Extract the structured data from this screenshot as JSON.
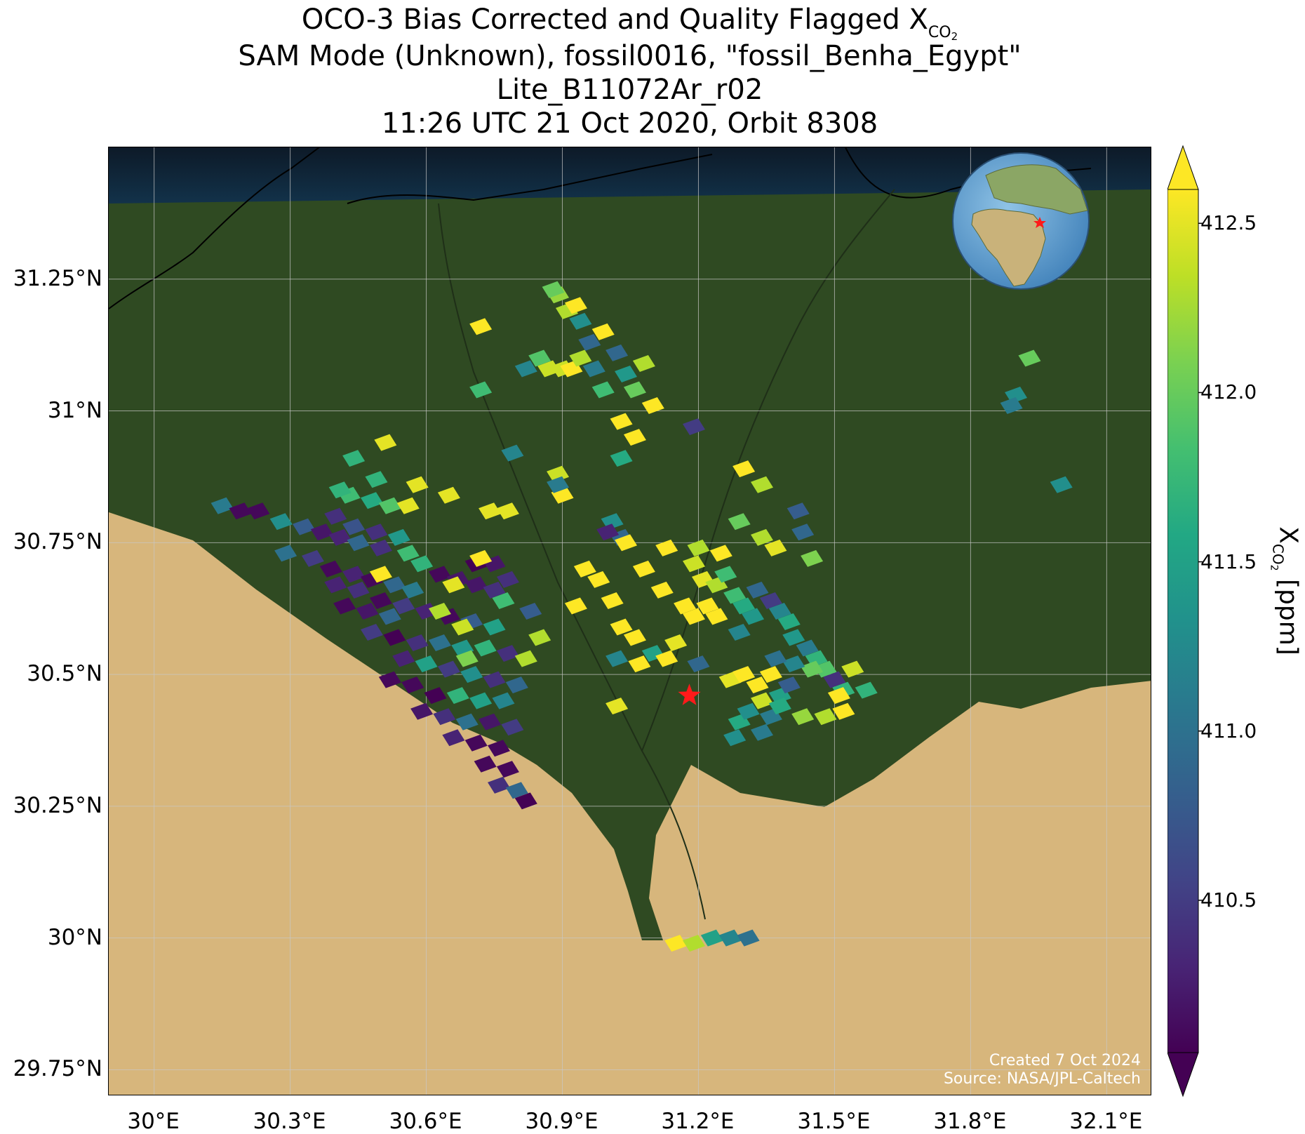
{
  "title": {
    "line1_main": "OCO-3 Bias Corrected and Quality Flagged X",
    "line1_sub": "CO",
    "line1_sub2": "2",
    "line2": "SAM Mode (Unknown), fossil0016, \"fossil_Benha_Egypt\"",
    "line3": "Lite_B11072Ar_r02",
    "line4": "11:26 UTC 21 Oct 2020, Orbit 8308"
  },
  "map": {
    "lon_range": [
      29.9,
      32.2
    ],
    "lat_range": [
      29.7,
      31.5
    ],
    "lon_ticks": [
      {
        "value": 30.0,
        "label": "30°E"
      },
      {
        "value": 30.3,
        "label": "30.3°E"
      },
      {
        "value": 30.6,
        "label": "30.6°E"
      },
      {
        "value": 30.9,
        "label": "30.9°E"
      },
      {
        "value": 31.2,
        "label": "31.2°E"
      },
      {
        "value": 31.5,
        "label": "31.5°E"
      },
      {
        "value": 31.8,
        "label": "31.8°E"
      },
      {
        "value": 32.1,
        "label": "32.1°E"
      }
    ],
    "lat_ticks": [
      {
        "value": 29.75,
        "label": "29.75°N"
      },
      {
        "value": 30.0,
        "label": "30°N"
      },
      {
        "value": 30.25,
        "label": "30.25°N"
      },
      {
        "value": 30.5,
        "label": "30.5°N"
      },
      {
        "value": 30.75,
        "label": "30.75°N"
      },
      {
        "value": 31.0,
        "label": "31°N"
      },
      {
        "value": 31.25,
        "label": "31.25°N"
      }
    ],
    "target": {
      "name": "fossil_Benha_Egypt",
      "lon": 31.18,
      "lat": 30.46,
      "marker": "red-star"
    },
    "colors": {
      "sea": "#0f1f2e",
      "delta": "#2e4a22",
      "desert": "#d9b77c",
      "star": "#ff1a1a",
      "grid": "#c8c8c8"
    },
    "credit_line1": "Created 7 Oct 2024",
    "credit_line2": "Source: NASA/JPL-Caltech",
    "inset_globe": {
      "marker": "red-star",
      "region": "Africa / Middle East"
    }
  },
  "colorbar": {
    "label_main": "X",
    "label_sub": "CO",
    "label_sub2": "2",
    "label_unit": " [ppm]",
    "range": [
      410.05,
      412.6
    ],
    "ticks": [
      {
        "value": 410.5,
        "label": "410.5"
      },
      {
        "value": 411.0,
        "label": "411.0"
      },
      {
        "value": 411.5,
        "label": "411.5"
      },
      {
        "value": 412.0,
        "label": "412.0"
      },
      {
        "value": 412.5,
        "label": "412.5"
      }
    ],
    "colormap": "viridis",
    "extend": "both"
  },
  "chart_data": {
    "type": "scatter",
    "title": "OCO-3 Bias Corrected and Quality Flagged XCO2",
    "xlabel": "",
    "ylabel": "",
    "colorbar_label": "XCO2 [ppm]",
    "x_name": "longitude (°E)",
    "y_name": "latitude (°N)",
    "value_name": "XCO2 (ppm)",
    "soundings": [
      [
        30.15,
        30.82,
        411.1
      ],
      [
        30.19,
        30.81,
        410.1
      ],
      [
        30.23,
        30.81,
        410.1
      ],
      [
        30.28,
        30.79,
        411.3
      ],
      [
        30.33,
        30.78,
        410.8
      ],
      [
        30.37,
        30.77,
        410.2
      ],
      [
        30.41,
        30.76,
        410.3
      ],
      [
        30.45,
        30.75,
        410.9
      ],
      [
        30.5,
        30.74,
        410.4
      ],
      [
        30.29,
        30.73,
        411.0
      ],
      [
        30.35,
        30.72,
        410.5
      ],
      [
        30.39,
        30.7,
        410.1
      ],
      [
        30.44,
        30.69,
        410.3
      ],
      [
        30.48,
        30.68,
        410.1
      ],
      [
        30.53,
        30.67,
        410.9
      ],
      [
        30.57,
        30.66,
        411.1
      ],
      [
        30.43,
        30.84,
        411.8
      ],
      [
        30.48,
        30.83,
        411.6
      ],
      [
        30.52,
        30.82,
        411.9
      ],
      [
        30.4,
        30.8,
        410.4
      ],
      [
        30.44,
        30.78,
        410.7
      ],
      [
        30.49,
        30.77,
        410.4
      ],
      [
        30.54,
        30.76,
        411.4
      ],
      [
        30.56,
        30.73,
        411.8
      ],
      [
        30.59,
        30.71,
        411.7
      ],
      [
        30.4,
        30.67,
        410.3
      ],
      [
        30.45,
        30.66,
        410.4
      ],
      [
        30.5,
        30.64,
        410.1
      ],
      [
        30.55,
        30.63,
        410.5
      ],
      [
        30.6,
        30.62,
        410.3
      ],
      [
        30.65,
        30.61,
        410.1
      ],
      [
        30.7,
        30.6,
        410.8
      ],
      [
        30.75,
        30.59,
        411.5
      ],
      [
        30.63,
        30.69,
        410.1
      ],
      [
        30.67,
        30.68,
        410.2
      ],
      [
        30.71,
        30.67,
        410.2
      ],
      [
        30.75,
        30.66,
        410.4
      ],
      [
        30.71,
        30.71,
        410.0
      ],
      [
        30.75,
        30.71,
        410.2
      ],
      [
        30.78,
        30.68,
        410.4
      ],
      [
        30.42,
        30.63,
        410.1
      ],
      [
        30.47,
        30.62,
        410.2
      ],
      [
        30.52,
        30.61,
        410.9
      ],
      [
        30.48,
        30.58,
        410.5
      ],
      [
        30.53,
        30.57,
        410.0
      ],
      [
        30.58,
        30.56,
        410.4
      ],
      [
        30.63,
        30.56,
        411.0
      ],
      [
        30.68,
        30.55,
        411.4
      ],
      [
        30.73,
        30.55,
        411.7
      ],
      [
        30.78,
        30.54,
        410.4
      ],
      [
        30.82,
        30.53,
        412.3
      ],
      [
        30.55,
        30.53,
        410.3
      ],
      [
        30.6,
        30.52,
        411.5
      ],
      [
        30.65,
        30.51,
        410.5
      ],
      [
        30.7,
        30.5,
        411.3
      ],
      [
        30.75,
        30.49,
        410.4
      ],
      [
        30.8,
        30.48,
        410.9
      ],
      [
        30.52,
        30.49,
        410.1
      ],
      [
        30.57,
        30.48,
        410.1
      ],
      [
        30.62,
        30.46,
        410.0
      ],
      [
        30.67,
        30.46,
        411.7
      ],
      [
        30.72,
        30.45,
        411.5
      ],
      [
        30.77,
        30.45,
        411.2
      ],
      [
        30.59,
        30.43,
        410.2
      ],
      [
        30.64,
        30.42,
        410.4
      ],
      [
        30.69,
        30.41,
        411.0
      ],
      [
        30.74,
        30.41,
        410.2
      ],
      [
        30.79,
        30.4,
        410.5
      ],
      [
        30.66,
        30.38,
        410.3
      ],
      [
        30.71,
        30.37,
        410.1
      ],
      [
        30.76,
        30.36,
        410.1
      ],
      [
        30.73,
        30.33,
        410.1
      ],
      [
        30.78,
        30.32,
        410.1
      ],
      [
        30.76,
        30.29,
        410.4
      ],
      [
        30.8,
        30.28,
        410.9
      ],
      [
        30.82,
        30.26,
        410.0
      ],
      [
        30.66,
        30.67,
        412.5
      ],
      [
        30.68,
        30.59,
        412.4
      ],
      [
        30.72,
        30.72,
        412.6
      ],
      [
        30.77,
        30.64,
        411.8
      ],
      [
        30.5,
        30.69,
        412.6
      ],
      [
        30.63,
        30.62,
        412.3
      ],
      [
        30.69,
        30.53,
        412.1
      ],
      [
        30.83,
        30.62,
        410.8
      ],
      [
        30.85,
        30.57,
        412.3
      ],
      [
        30.51,
        30.94,
        412.5
      ],
      [
        30.44,
        30.91,
        411.7
      ],
      [
        30.49,
        30.87,
        411.7
      ],
      [
        30.41,
        30.85,
        411.7
      ],
      [
        30.58,
        30.86,
        412.5
      ],
      [
        30.65,
        30.84,
        412.5
      ],
      [
        30.56,
        30.82,
        412.5
      ],
      [
        30.74,
        30.81,
        412.5
      ],
      [
        30.79,
        30.92,
        411.2
      ],
      [
        30.89,
        30.88,
        412.4
      ],
      [
        30.9,
        30.84,
        412.6
      ],
      [
        30.89,
        30.86,
        411.1
      ],
      [
        30.78,
        30.81,
        412.5
      ],
      [
        30.72,
        31.16,
        412.6
      ],
      [
        30.72,
        31.04,
        411.8
      ],
      [
        30.82,
        31.08,
        411.2
      ],
      [
        30.85,
        31.1,
        411.9
      ],
      [
        30.87,
        31.08,
        412.4
      ],
      [
        30.9,
        31.08,
        412.4
      ],
      [
        30.92,
        31.08,
        412.6
      ],
      [
        30.89,
        31.22,
        412.2
      ],
      [
        30.91,
        31.19,
        412.3
      ],
      [
        30.94,
        31.17,
        411.3
      ],
      [
        30.96,
        31.13,
        410.9
      ],
      [
        30.97,
        31.08,
        411.1
      ],
      [
        30.94,
        31.1,
        412.3
      ],
      [
        30.99,
        31.15,
        412.6
      ],
      [
        31.02,
        31.11,
        410.9
      ],
      [
        31.04,
        31.07,
        411.4
      ],
      [
        30.99,
        31.04,
        411.8
      ],
      [
        31.06,
        31.04,
        412.0
      ],
      [
        31.08,
        31.09,
        412.3
      ],
      [
        31.1,
        31.01,
        412.6
      ],
      [
        31.03,
        30.98,
        412.6
      ],
      [
        31.06,
        30.95,
        412.6
      ],
      [
        31.03,
        30.91,
        411.6
      ],
      [
        30.88,
        31.23,
        412.0
      ],
      [
        30.93,
        31.2,
        412.6
      ],
      [
        31.19,
        30.97,
        410.5
      ],
      [
        31.93,
        31.1,
        412.0
      ],
      [
        31.9,
        31.03,
        411.3
      ],
      [
        31.89,
        31.01,
        411.1
      ],
      [
        32.0,
        30.86,
        411.3
      ],
      [
        31.3,
        30.89,
        412.6
      ],
      [
        31.34,
        30.86,
        412.3
      ],
      [
        31.42,
        30.81,
        410.8
      ],
      [
        31.43,
        30.77,
        410.9
      ],
      [
        31.29,
        30.79,
        412.0
      ],
      [
        31.34,
        30.76,
        412.3
      ],
      [
        31.37,
        30.74,
        412.5
      ],
      [
        31.45,
        30.72,
        412.1
      ],
      [
        31.01,
        30.79,
        411.3
      ],
      [
        31.03,
        30.76,
        410.9
      ],
      [
        31.0,
        30.77,
        410.3
      ],
      [
        31.04,
        30.75,
        412.6
      ],
      [
        31.13,
        30.74,
        412.6
      ],
      [
        31.2,
        30.74,
        412.3
      ],
      [
        31.25,
        30.73,
        412.6
      ],
      [
        31.19,
        30.71,
        412.4
      ],
      [
        31.21,
        30.68,
        412.5
      ],
      [
        31.24,
        30.67,
        412.3
      ],
      [
        31.26,
        30.69,
        411.8
      ],
      [
        30.95,
        30.7,
        412.6
      ],
      [
        30.98,
        30.68,
        412.6
      ],
      [
        31.08,
        30.7,
        412.6
      ],
      [
        31.12,
        30.66,
        412.6
      ],
      [
        31.01,
        30.64,
        412.6
      ],
      [
        30.93,
        30.63,
        412.6
      ],
      [
        31.22,
        30.63,
        412.6
      ],
      [
        31.24,
        30.61,
        412.6
      ],
      [
        31.19,
        30.61,
        412.6
      ],
      [
        31.17,
        30.63,
        412.6
      ],
      [
        31.03,
        30.59,
        412.6
      ],
      [
        31.06,
        30.57,
        412.6
      ],
      [
        31.15,
        30.56,
        412.5
      ],
      [
        31.02,
        30.53,
        411.2
      ],
      [
        31.07,
        30.52,
        412.6
      ],
      [
        31.2,
        30.52,
        410.9
      ],
      [
        31.28,
        30.65,
        411.8
      ],
      [
        31.3,
        30.63,
        411.6
      ],
      [
        31.32,
        30.61,
        411.4
      ],
      [
        31.29,
        30.58,
        411.2
      ],
      [
        31.33,
        30.66,
        410.9
      ],
      [
        31.36,
        30.64,
        410.5
      ],
      [
        31.38,
        30.62,
        411.2
      ],
      [
        31.4,
        30.6,
        411.6
      ],
      [
        31.41,
        30.57,
        411.4
      ],
      [
        31.44,
        30.55,
        411.1
      ],
      [
        31.46,
        30.53,
        411.7
      ],
      [
        31.48,
        30.51,
        411.9
      ],
      [
        31.5,
        30.49,
        410.4
      ],
      [
        31.52,
        30.47,
        411.7
      ],
      [
        31.54,
        30.51,
        412.4
      ],
      [
        31.57,
        30.47,
        411.7
      ],
      [
        31.27,
        30.49,
        412.5
      ],
      [
        31.3,
        30.5,
        412.6
      ],
      [
        31.33,
        30.48,
        412.6
      ],
      [
        31.36,
        30.5,
        412.6
      ],
      [
        31.38,
        30.46,
        411.5
      ],
      [
        31.4,
        30.48,
        410.8
      ],
      [
        31.29,
        30.41,
        411.6
      ],
      [
        31.31,
        30.43,
        411.3
      ],
      [
        31.34,
        30.45,
        412.4
      ],
      [
        31.36,
        30.42,
        411.1
      ],
      [
        31.38,
        30.44,
        411.6
      ],
      [
        31.28,
        30.38,
        411.3
      ],
      [
        31.34,
        30.39,
        411.1
      ],
      [
        31.43,
        30.42,
        412.2
      ],
      [
        31.48,
        30.42,
        412.3
      ],
      [
        31.51,
        30.46,
        412.6
      ],
      [
        31.45,
        30.51,
        412.0
      ],
      [
        31.41,
        30.52,
        411.2
      ],
      [
        31.37,
        30.53,
        411.0
      ],
      [
        31.02,
        30.44,
        412.5
      ],
      [
        31.52,
        30.43,
        412.6
      ],
      [
        31.1,
        30.54,
        411.5
      ],
      [
        31.13,
        30.53,
        412.6
      ],
      [
        31.15,
        29.99,
        412.6
      ],
      [
        31.19,
        29.99,
        412.3
      ],
      [
        31.23,
        30.0,
        411.5
      ],
      [
        31.27,
        30.0,
        411.2
      ],
      [
        31.31,
        30.0,
        411.0
      ]
    ]
  }
}
